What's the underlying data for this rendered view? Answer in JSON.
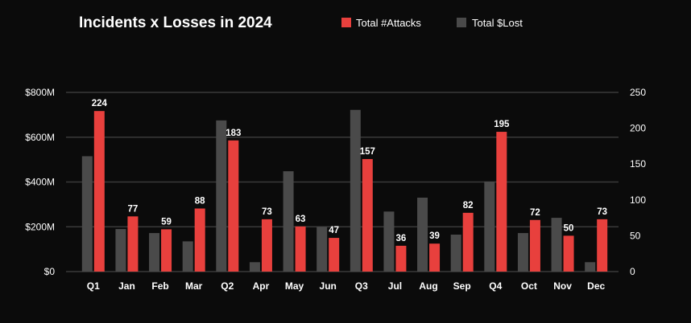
{
  "chart_data": {
    "type": "bar",
    "title": "Incidents x Losses in 2024",
    "categories": [
      "Q1",
      "Jan",
      "Feb",
      "Mar",
      "Q2",
      "Apr",
      "May",
      "Jun",
      "Q3",
      "Jul",
      "Aug",
      "Sep",
      "Q4",
      "Oct",
      "Nov",
      "Dec"
    ],
    "series": [
      {
        "name": "Total $Lost",
        "axis": "left",
        "color": "#4a4a4a",
        "values": [
          515,
          190,
          172,
          135,
          675,
          42,
          448,
          200,
          722,
          268,
          330,
          165,
          402,
          172,
          240,
          42
        ]
      },
      {
        "name": "Total #Attacks",
        "axis": "right",
        "color": "#e8403d",
        "values": [
          224,
          77,
          59,
          88,
          183,
          73,
          63,
          47,
          157,
          36,
          39,
          82,
          195,
          72,
          50,
          73
        ],
        "labels": [
          "224",
          "77",
          "59",
          "88",
          "183",
          "73",
          "63",
          "47",
          "157",
          "36",
          "39",
          "82",
          "195",
          "72",
          "50",
          "73"
        ]
      }
    ],
    "y_left": {
      "min": 0,
      "max": 800,
      "ticks": [
        0,
        200,
        400,
        600,
        800
      ],
      "tick_labels": [
        "$0",
        "$200M",
        "$400M",
        "$600M",
        "$800M"
      ]
    },
    "y_right": {
      "min": 0,
      "max": 250,
      "ticks": [
        0,
        50,
        100,
        150,
        200,
        250
      ],
      "tick_labels": [
        "0",
        "50",
        "100",
        "150",
        "200",
        "250"
      ]
    },
    "legend": {
      "position": "top-right",
      "entries": [
        "Total #Attacks",
        "Total $Lost"
      ]
    },
    "grid": true
  },
  "colors": {
    "background": "#0b0b0b",
    "attacks": "#e8403d",
    "lost": "#4a4a4a",
    "text": "#ffffff",
    "grid": "#3a3a3a"
  }
}
